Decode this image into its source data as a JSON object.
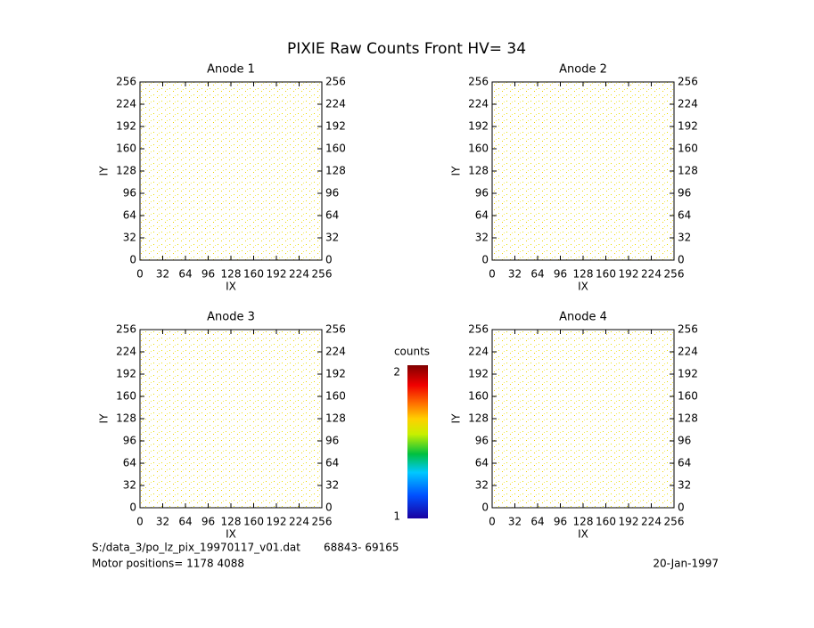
{
  "title": "PIXIE Raw Counts Front HV= 34",
  "chart_data": [
    {
      "type": "heatmap",
      "title": "Anode 1",
      "xlabel": "IX",
      "ylabel": "IY",
      "xlim": [
        0,
        256
      ],
      "ylim": [
        0,
        256
      ],
      "xticks": [
        0,
        32,
        64,
        96,
        128,
        160,
        192,
        224,
        256
      ],
      "yticks": [
        0,
        32,
        64,
        96,
        128,
        160,
        192,
        224,
        256
      ]
    },
    {
      "type": "heatmap",
      "title": "Anode 2",
      "xlabel": "IX",
      "ylabel": "IY",
      "xlim": [
        0,
        256
      ],
      "ylim": [
        0,
        256
      ],
      "xticks": [
        0,
        32,
        64,
        96,
        128,
        160,
        192,
        224,
        256
      ],
      "yticks": [
        0,
        32,
        64,
        96,
        128,
        160,
        192,
        224,
        256
      ]
    },
    {
      "type": "heatmap",
      "title": "Anode 3",
      "xlabel": "IX",
      "ylabel": "IY",
      "xlim": [
        0,
        256
      ],
      "ylim": [
        0,
        256
      ],
      "xticks": [
        0,
        32,
        64,
        96,
        128,
        160,
        192,
        224,
        256
      ],
      "yticks": [
        0,
        32,
        64,
        96,
        128,
        160,
        192,
        224,
        256
      ]
    },
    {
      "type": "heatmap",
      "title": "Anode 4",
      "xlabel": "IX",
      "ylabel": "IY",
      "xlim": [
        0,
        256
      ],
      "ylim": [
        0,
        256
      ],
      "xticks": [
        0,
        32,
        64,
        96,
        128,
        160,
        192,
        224,
        256
      ],
      "yticks": [
        0,
        32,
        64,
        96,
        128,
        160,
        192,
        224,
        256
      ]
    }
  ],
  "colorbar": {
    "label": "counts",
    "lim": [
      1,
      2
    ],
    "ticks": [
      1,
      2
    ]
  },
  "footer": {
    "file": "S:/data_3/po_lz_pix_19970117_v01.dat",
    "range": "68843- 69165",
    "motor": "Motor positions= 1178 4088",
    "date": "20-Jan-1997"
  }
}
